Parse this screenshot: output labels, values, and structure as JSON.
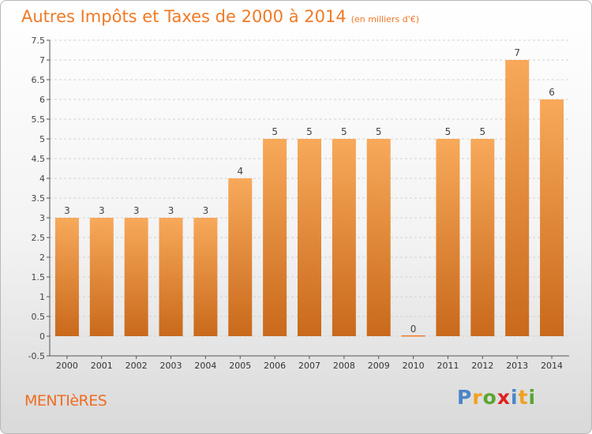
{
  "header": {
    "title": "Autres Impôts et Taxes de 2000 à 2014",
    "subtitle": "(en milliers d'€)"
  },
  "footer": {
    "commune": "MENTIèRES",
    "logo": [
      "P",
      "r",
      "o",
      "x",
      "i",
      "t",
      "i"
    ],
    "logo_colors": [
      "#4a86c8",
      "#f0a020",
      "#5aa530",
      "#e02020",
      "#4a86c8",
      "#f0a020",
      "#5aa530"
    ]
  },
  "colors": {
    "bar_top": "#f8a95a",
    "bar_bottom": "#c9691b",
    "accent": "#f07a26",
    "grid": "#d2d2d2"
  },
  "chart_data": {
    "type": "bar",
    "title": "Autres Impôts et Taxes de 2000 à 2014",
    "subtitle": "(en milliers d'€)",
    "categories": [
      "2000",
      "2001",
      "2002",
      "2003",
      "2004",
      "2005",
      "2006",
      "2007",
      "2008",
      "2009",
      "2010",
      "2011",
      "2012",
      "2013",
      "2014"
    ],
    "values": [
      3,
      3,
      3,
      3,
      3,
      4,
      5,
      5,
      5,
      5,
      0,
      5,
      5,
      7,
      6
    ],
    "data_labels": [
      "3",
      "3",
      "3",
      "3",
      "3",
      "4",
      "5",
      "5",
      "5",
      "5",
      "0",
      "5",
      "5",
      "7",
      "6"
    ],
    "ylim": [
      -0.5,
      7.5
    ],
    "yticks": [
      "-0.5",
      "0",
      "0.5",
      "1",
      "1.5",
      "2",
      "2.5",
      "3",
      "3.5",
      "4",
      "4.5",
      "5",
      "5.5",
      "6",
      "6.5",
      "7",
      "7.5"
    ],
    "grid": true
  }
}
